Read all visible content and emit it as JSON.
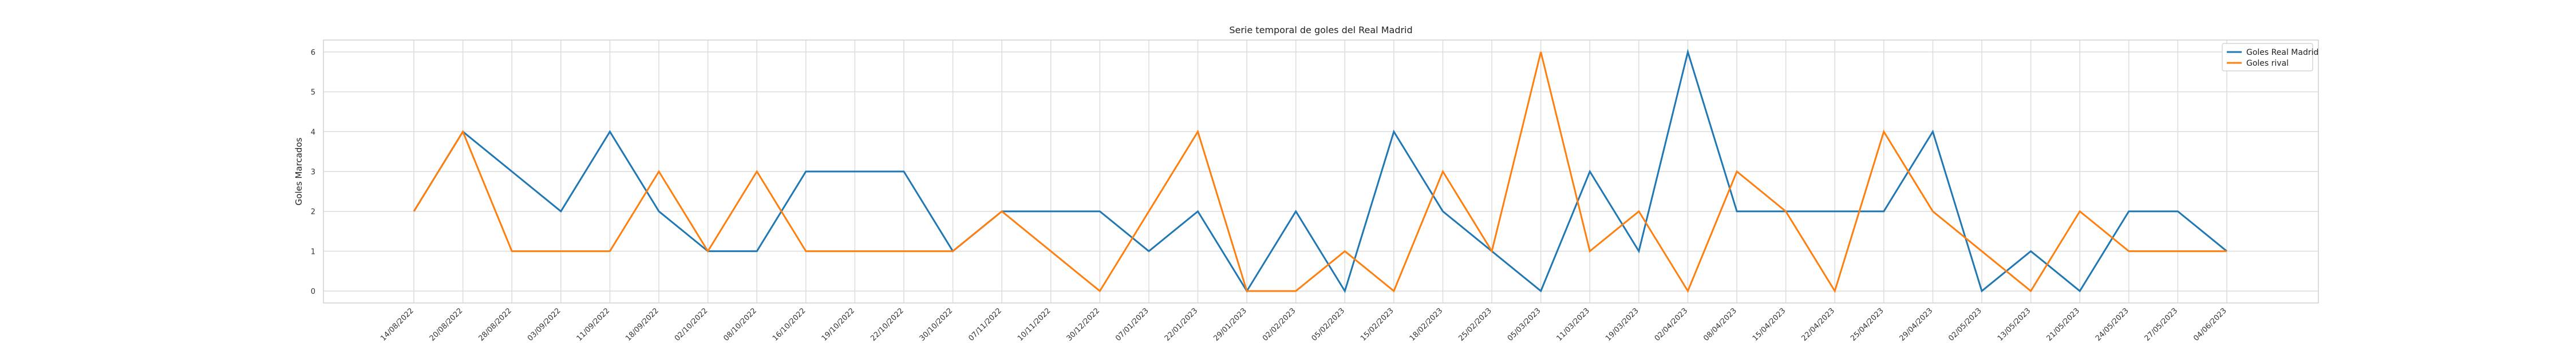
{
  "chart_data": {
    "type": "line",
    "title": "Serie temporal de goles del Real Madrid",
    "xlabel": "",
    "ylabel": "Goles Marcados",
    "ylim": [
      -0.3,
      6.3
    ],
    "yticks": [
      0,
      1,
      2,
      3,
      4,
      5,
      6
    ],
    "grid": true,
    "legend_position": "top-right",
    "x": [
      "14/08/2022",
      "20/08/2022",
      "28/08/2022",
      "03/09/2022",
      "11/09/2022",
      "18/09/2022",
      "02/10/2022",
      "08/10/2022",
      "16/10/2022",
      "19/10/2022",
      "22/10/2022",
      "30/10/2022",
      "07/11/2022",
      "10/11/2022",
      "30/12/2022",
      "07/01/2023",
      "22/01/2023",
      "29/01/2023",
      "02/02/2023",
      "05/02/2023",
      "15/02/2023",
      "18/02/2023",
      "25/02/2023",
      "05/03/2023",
      "11/03/2023",
      "19/03/2023",
      "02/04/2023",
      "08/04/2023",
      "15/04/2023",
      "22/04/2023",
      "25/04/2023",
      "29/04/2023",
      "02/05/2023",
      "13/05/2023",
      "21/05/2023",
      "24/05/2023",
      "27/05/2023",
      "04/06/2023"
    ],
    "series": [
      {
        "name": "Goles Real Madrid",
        "color": "#1f77b4",
        "values": [
          2,
          4,
          3,
          2,
          4,
          2,
          1,
          1,
          3,
          3,
          3,
          1,
          2,
          2,
          2,
          1,
          2,
          0,
          2,
          0,
          4,
          2,
          1,
          0,
          3,
          1,
          6,
          2,
          2,
          2,
          2,
          4,
          0,
          1,
          0,
          2,
          2,
          1
        ]
      },
      {
        "name": "Goles rival",
        "color": "#ff7f0e",
        "values": [
          2,
          4,
          1,
          1,
          1,
          3,
          1,
          3,
          1,
          1,
          1,
          1,
          2,
          1,
          0,
          2,
          4,
          0,
          0,
          1,
          0,
          3,
          1,
          6,
          1,
          2,
          0,
          3,
          2,
          0,
          4,
          2,
          1,
          0,
          2,
          1,
          1,
          1
        ]
      }
    ]
  }
}
